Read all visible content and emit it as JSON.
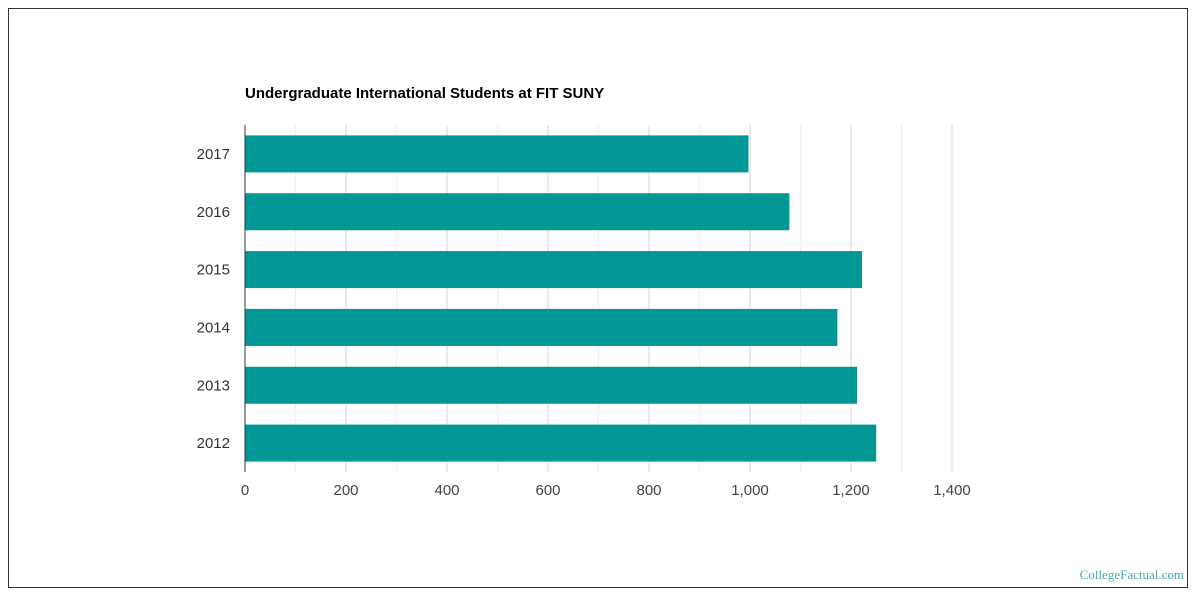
{
  "chart_data": {
    "type": "bar",
    "orientation": "horizontal",
    "title": "Undergraduate International Students at FIT SUNY",
    "categories": [
      "2017",
      "2016",
      "2015",
      "2014",
      "2013",
      "2012"
    ],
    "values": [
      997,
      1078,
      1222,
      1173,
      1212,
      1250
    ],
    "xlim": [
      0,
      1400
    ],
    "x_ticks": [
      0,
      200,
      400,
      600,
      800,
      1000,
      1200,
      1400
    ],
    "x_tick_labels": [
      "0",
      "200",
      "400",
      "600",
      "800",
      "1,000",
      "1,200",
      "1,400"
    ],
    "grid": true,
    "bar_color": "#009794"
  },
  "watermark": "CollegeFactual.com"
}
